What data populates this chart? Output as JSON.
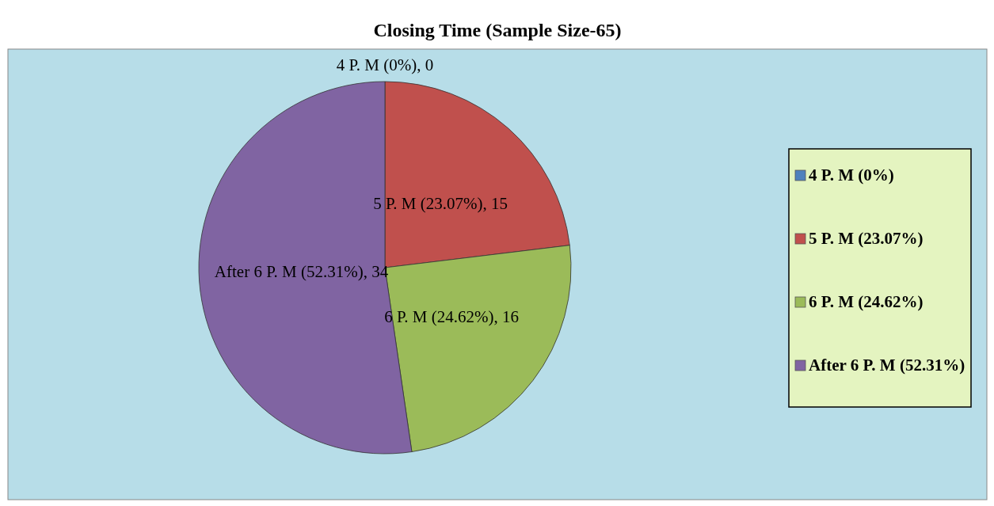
{
  "chart_data": {
    "type": "pie",
    "title": "Closing Time (Sample Size-65)",
    "categories": [
      "4 P. M (0%)",
      "5 P. M (23.07%)",
      "6 P. M (24.62%)",
      "After 6 P. M (52.31%)"
    ],
    "values": [
      0,
      15,
      16,
      34
    ],
    "colors": [
      "#4f81bd",
      "#c0504d",
      "#9bbb59",
      "#8064a2"
    ],
    "value_labels": [
      "4 P. M (0%), 0",
      "5 P. M (23.07%), 15",
      "6 P. M (24.62%), 16",
      "After 6 P. M (52.31%), 34"
    ],
    "legend": "right"
  }
}
